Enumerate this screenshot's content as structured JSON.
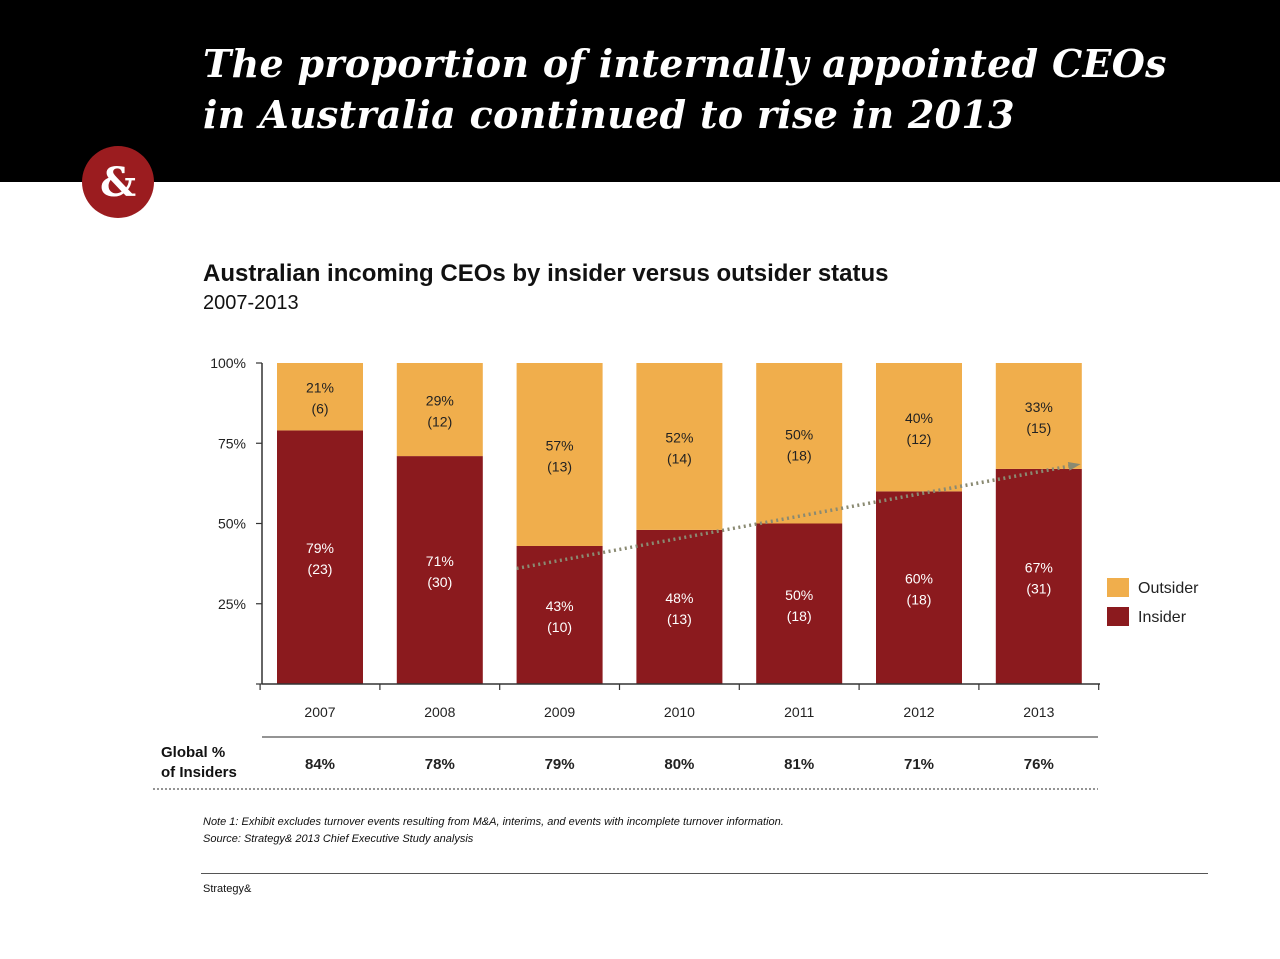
{
  "header": {
    "title_line1": "The proportion of internally appointed CEOs",
    "title_line2": "in Australia continued to rise in 2013",
    "logo_text": "&"
  },
  "chart_data": {
    "type": "bar",
    "stacked": true,
    "title": "Australian incoming CEOs by insider versus outsider status",
    "subtitle": "2007-2013",
    "categories": [
      "2007",
      "2008",
      "2009",
      "2010",
      "2011",
      "2012",
      "2013"
    ],
    "series": [
      {
        "name": "Insider",
        "color": "#8b1a1e",
        "values": [
          79,
          71,
          43,
          48,
          50,
          60,
          67
        ],
        "labels": [
          "79%",
          "71%",
          "43%",
          "48%",
          "50%",
          "60%",
          "67%"
        ],
        "counts": [
          "(23)",
          "(30)",
          "(10)",
          "(13)",
          "(18)",
          "(18)",
          "(31)"
        ]
      },
      {
        "name": "Outsider",
        "color": "#f0ae4c",
        "values": [
          21,
          29,
          57,
          52,
          50,
          40,
          33
        ],
        "labels": [
          "21%",
          "29%",
          "57%",
          "52%",
          "50%",
          "40%",
          "33%"
        ],
        "counts": [
          "(6)",
          "(12)",
          "(13)",
          "(14)",
          "(18)",
          "(12)",
          "(15)"
        ]
      }
    ],
    "ylim": [
      0,
      100
    ],
    "yticks": [
      "100%",
      "75%",
      "50%",
      "25%"
    ],
    "ytick_values": [
      100,
      75,
      50,
      25
    ],
    "trendline": {
      "from": "2009",
      "to": "2013",
      "y_start": 36,
      "y_end": 68,
      "style": "dotted",
      "arrow": true
    },
    "legend": {
      "position": "right",
      "order": [
        "Outsider",
        "Insider"
      ]
    }
  },
  "global_row": {
    "label_line1": "Global %",
    "label_line2": "of Insiders",
    "values": [
      "84%",
      "78%",
      "79%",
      "80%",
      "81%",
      "71%",
      "76%"
    ]
  },
  "notes": {
    "line1": "Note 1: Exhibit excludes turnover events resulting from M&A, interims, and events with incomplete turnover information.",
    "line2": "Source: Strategy& 2013 Chief Executive Study analysis"
  },
  "footer": {
    "brand": "Strategy&"
  }
}
